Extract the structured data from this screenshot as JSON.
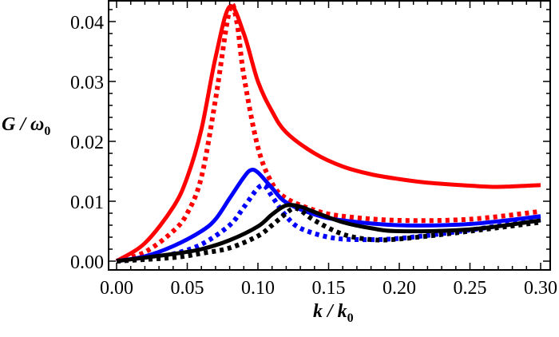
{
  "chart_data": {
    "type": "line",
    "title": "",
    "xlabel": {
      "main": "k / k",
      "sub": "0"
    },
    "ylabel": {
      "main": "G / ω",
      "sub": "0"
    },
    "xlim": [
      0,
      0.3
    ],
    "ylim": [
      0,
      0.043
    ],
    "grid": false,
    "x_ticks": [
      "0.00",
      "0.05",
      "0.10",
      "0.15",
      "0.20",
      "0.25",
      "0.30"
    ],
    "y_ticks": [
      "0.00",
      "0.01",
      "0.02",
      "0.03",
      "0.04"
    ],
    "series": [
      {
        "color": "#ff0000",
        "style": "solid",
        "points": [
          [
            0,
            0
          ],
          [
            0.02,
            0.003
          ],
          [
            0.04,
            0.009
          ],
          [
            0.05,
            0.014
          ],
          [
            0.06,
            0.022
          ],
          [
            0.07,
            0.034
          ],
          [
            0.08,
            0.0425
          ],
          [
            0.09,
            0.038
          ],
          [
            0.1,
            0.03
          ],
          [
            0.11,
            0.025
          ],
          [
            0.12,
            0.0215
          ],
          [
            0.14,
            0.018
          ],
          [
            0.16,
            0.0158
          ],
          [
            0.18,
            0.0145
          ],
          [
            0.2,
            0.0137
          ],
          [
            0.22,
            0.0131
          ],
          [
            0.25,
            0.0126
          ],
          [
            0.27,
            0.0124
          ],
          [
            0.3,
            0.0127
          ]
        ]
      },
      {
        "color": "#ff0000",
        "style": "dotted",
        "points": [
          [
            0,
            0
          ],
          [
            0.02,
            0.0015
          ],
          [
            0.04,
            0.005
          ],
          [
            0.05,
            0.008
          ],
          [
            0.06,
            0.014
          ],
          [
            0.07,
            0.027
          ],
          [
            0.08,
            0.042
          ],
          [
            0.085,
            0.04
          ],
          [
            0.09,
            0.031
          ],
          [
            0.1,
            0.019
          ],
          [
            0.11,
            0.013
          ],
          [
            0.12,
            0.0105
          ],
          [
            0.14,
            0.0085
          ],
          [
            0.16,
            0.0075
          ],
          [
            0.2,
            0.0068
          ],
          [
            0.25,
            0.007
          ],
          [
            0.3,
            0.0083
          ]
        ]
      },
      {
        "color": "#0000ff",
        "style": "solid",
        "points": [
          [
            0,
            0
          ],
          [
            0.02,
            0.0008
          ],
          [
            0.04,
            0.0025
          ],
          [
            0.06,
            0.005
          ],
          [
            0.07,
            0.007
          ],
          [
            0.08,
            0.0105
          ],
          [
            0.09,
            0.014
          ],
          [
            0.095,
            0.0152
          ],
          [
            0.1,
            0.0148
          ],
          [
            0.11,
            0.0122
          ],
          [
            0.12,
            0.0098
          ],
          [
            0.14,
            0.0078
          ],
          [
            0.16,
            0.0068
          ],
          [
            0.2,
            0.006
          ],
          [
            0.25,
            0.0062
          ],
          [
            0.3,
            0.0075
          ]
        ]
      },
      {
        "color": "#0000ff",
        "style": "dotted",
        "points": [
          [
            0,
            0
          ],
          [
            0.02,
            0.0004
          ],
          [
            0.04,
            0.0012
          ],
          [
            0.06,
            0.0028
          ],
          [
            0.08,
            0.006
          ],
          [
            0.09,
            0.009
          ],
          [
            0.1,
            0.0122
          ],
          [
            0.105,
            0.0125
          ],
          [
            0.11,
            0.0108
          ],
          [
            0.12,
            0.0075
          ],
          [
            0.13,
            0.0055
          ],
          [
            0.15,
            0.004
          ],
          [
            0.17,
            0.0036
          ],
          [
            0.2,
            0.0038
          ],
          [
            0.25,
            0.0052
          ],
          [
            0.3,
            0.007
          ]
        ]
      },
      {
        "color": "#000000",
        "style": "solid",
        "points": [
          [
            0,
            0
          ],
          [
            0.04,
            0.0012
          ],
          [
            0.06,
            0.002
          ],
          [
            0.08,
            0.0035
          ],
          [
            0.1,
            0.0058
          ],
          [
            0.11,
            0.0078
          ],
          [
            0.12,
            0.0093
          ],
          [
            0.13,
            0.0091
          ],
          [
            0.14,
            0.0082
          ],
          [
            0.16,
            0.0065
          ],
          [
            0.18,
            0.0055
          ],
          [
            0.2,
            0.005
          ],
          [
            0.25,
            0.0053
          ],
          [
            0.3,
            0.0068
          ]
        ]
      },
      {
        "color": "#000000",
        "style": "dotted",
        "points": [
          [
            0,
            0
          ],
          [
            0.04,
            0.0006
          ],
          [
            0.06,
            0.0013
          ],
          [
            0.08,
            0.0022
          ],
          [
            0.1,
            0.0042
          ],
          [
            0.11,
            0.006
          ],
          [
            0.12,
            0.008
          ],
          [
            0.125,
            0.0088
          ],
          [
            0.13,
            0.0085
          ],
          [
            0.14,
            0.0068
          ],
          [
            0.16,
            0.0045
          ],
          [
            0.18,
            0.0036
          ],
          [
            0.2,
            0.0037
          ],
          [
            0.25,
            0.005
          ],
          [
            0.3,
            0.0065
          ]
        ]
      }
    ]
  }
}
